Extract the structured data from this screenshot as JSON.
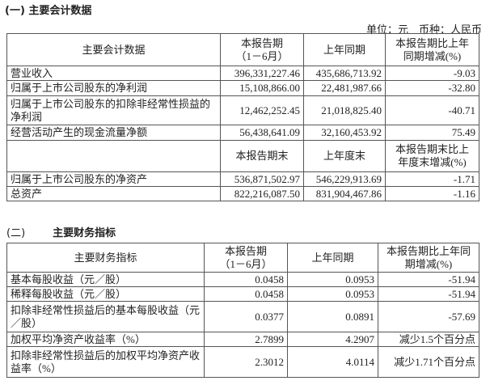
{
  "section1": {
    "title": "(一) 主要会计数据",
    "unit": "单位：元　币种：人民币",
    "header": [
      "主要会计数据",
      "本报告期\n（1－6月）",
      "上年同期",
      "本报告期比上年同期增减(%)"
    ],
    "rows": [
      [
        "营业收入",
        "396,331,227.46",
        "435,686,713.92",
        "-9.03"
      ],
      [
        "归属于上市公司股东的净利润",
        "15,108,866.00",
        "22,481,987.66",
        "-32.80"
      ],
      [
        "归属于上市公司股东的扣除非经常性损益的净利润",
        "12,462,252.45",
        "21,018,825.40",
        "-40.71"
      ],
      [
        "经营活动产生的现金流量净额",
        "56,438,641.09",
        "32,160,453.92",
        "75.49"
      ]
    ],
    "header2": [
      "",
      "本报告期末",
      "上年度末",
      "本报告期末比上年度末增减(%)"
    ],
    "rows2": [
      [
        "归属于上市公司股东的净资产",
        "536,871,502.97",
        "546,229,913.69",
        "-1.71"
      ],
      [
        "总资产",
        "822,216,087.50",
        "831,904,467.86",
        "-1.16"
      ]
    ]
  },
  "section2": {
    "num": "(二)",
    "title": "主要财务指标",
    "header": [
      "主要财务指标",
      "本报告期\n（1－6月）",
      "上年同期",
      "本报告期比上年同期增减(%)"
    ],
    "rows": [
      [
        "基本每股收益（元／股）",
        "0.0458",
        "0.0953",
        "-51.94"
      ],
      [
        "稀释每股收益（元／股）",
        "0.0458",
        "0.0953",
        "-51.94"
      ],
      [
        "扣除非经常性损益后的基本每股收益（元／股）",
        "0.0377",
        "0.0891",
        "-57.69"
      ],
      [
        "加权平均净资产收益率（%）",
        "2.7899",
        "4.2907",
        "减少1.5个百分点"
      ],
      [
        "扣除非经常性损益后的加权平均净资产收益率（%）",
        "2.3012",
        "4.0114",
        "减少1.71个百分点"
      ]
    ]
  }
}
